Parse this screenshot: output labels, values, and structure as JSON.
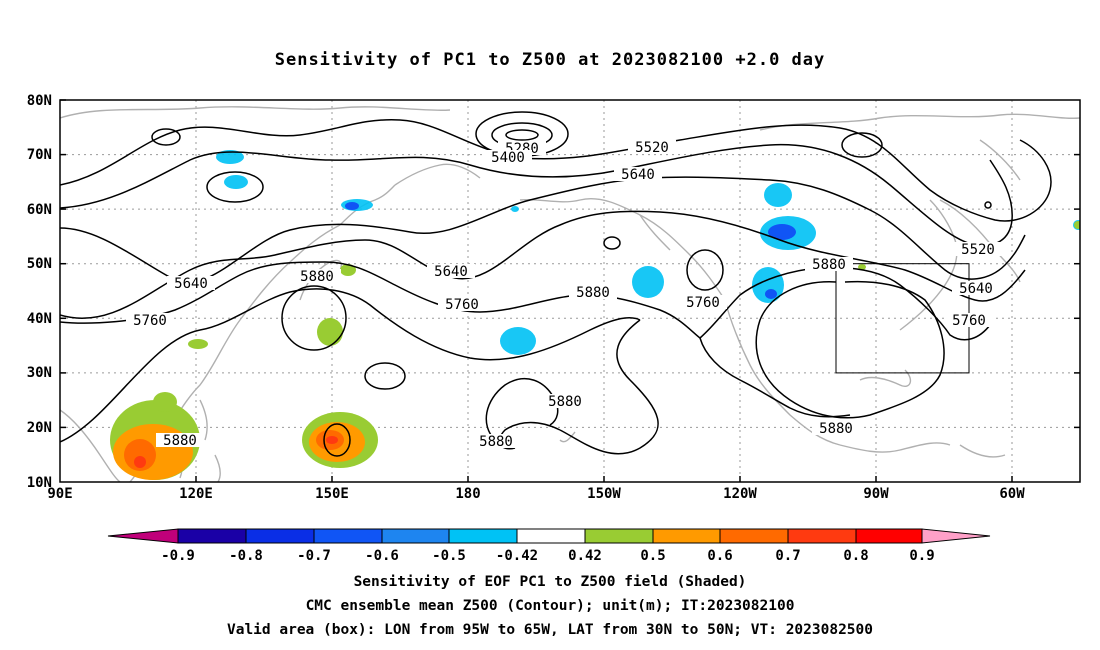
{
  "title": "Sensitivity of PC1 to Z500 at 2023082100 +2.0 day",
  "axes": {
    "lat_labels": [
      "80N",
      "70N",
      "60N",
      "50N",
      "40N",
      "30N",
      "20N",
      "10N"
    ],
    "lon_labels": [
      "90E",
      "120E",
      "150E",
      "180",
      "150W",
      "120W",
      "90W",
      "60W"
    ]
  },
  "contour_labels": [
    "5280",
    "5400",
    "5520",
    "5640",
    "5640",
    "5640",
    "5760",
    "5760",
    "5880",
    "5880",
    "5880",
    "5880",
    "5880",
    "5880",
    "5880",
    "5760",
    "5520",
    "5640",
    "5760"
  ],
  "colorbar": {
    "tick_labels": [
      "-0.9",
      "-0.8",
      "-0.7",
      "-0.6",
      "-0.5",
      "-0.42",
      "0.42",
      "0.5",
      "0.6",
      "0.7",
      "0.8",
      "0.9"
    ],
    "colors": [
      "#c0007a",
      "#1a00a6",
      "#0a2ee6",
      "#1055f5",
      "#1e85f0",
      "#00c2f5",
      "#ffffff",
      "#99cc33",
      "#ff9a00",
      "#ff6a00",
      "#ff3a10",
      "#ff0000",
      "#ffa0c8"
    ]
  },
  "captions": [
    "Sensitivity of EOF PC1 to Z500 field (Shaded)",
    "CMC ensemble mean Z500 (Contour); unit(m); IT:2023082100",
    "Valid area (box): LON from 95W to 65W, LAT from 30N to 50N; VT: 2023082500"
  ]
}
